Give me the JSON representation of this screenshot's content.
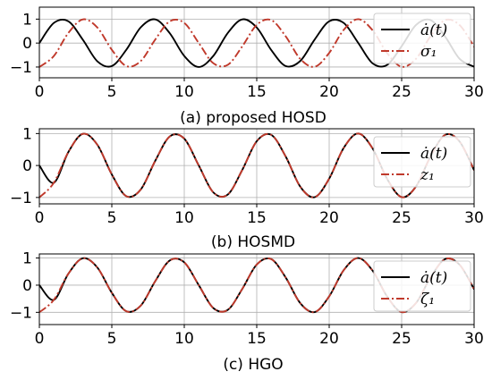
{
  "chart_data": [
    {
      "type": "line",
      "caption": "(a) proposed HOSD",
      "xlim": [
        0,
        30
      ],
      "ylim": [
        -1.45,
        1.5
      ],
      "xticks": [
        0,
        5,
        10,
        15,
        20,
        25,
        30
      ],
      "yticks": [
        -1,
        0,
        1
      ],
      "grid": true,
      "legend_position": "top-right",
      "series": [
        {
          "name": "ȧ(t)",
          "color": "#000000",
          "style": "solid",
          "x": [
            0,
            1,
            2,
            3,
            4,
            5,
            6,
            7,
            8,
            9,
            10,
            11,
            12,
            13,
            14,
            15,
            16,
            17,
            18,
            19,
            20,
            21,
            22,
            23,
            24,
            25,
            26,
            27,
            28,
            29,
            30
          ],
          "y": [
            0,
            0.84,
            0.91,
            0.14,
            -0.76,
            -0.96,
            -0.28,
            0.66,
            0.99,
            0.41,
            -0.54,
            -1.0,
            -0.54,
            0.42,
            0.99,
            0.65,
            -0.29,
            -0.96,
            -0.75,
            0.15,
            0.91,
            0.84,
            0.01,
            -0.85,
            -0.91,
            -0.13,
            0.76,
            0.96,
            0.27,
            -0.66,
            -0.99
          ]
        },
        {
          "name": "σ₁",
          "color": "#c0392b",
          "style": "dashdot",
          "x": [
            0,
            1,
            2,
            3,
            4,
            5,
            6,
            7,
            8,
            9,
            10,
            11,
            12,
            13,
            14,
            15,
            16,
            17,
            18,
            19,
            20,
            21,
            22,
            23,
            24,
            25,
            26,
            27,
            28,
            29,
            30
          ],
          "y": [
            -1.0,
            -0.54,
            0.42,
            0.99,
            0.65,
            -0.28,
            -0.96,
            -0.75,
            0.15,
            0.91,
            0.84,
            0.0,
            -0.84,
            -0.91,
            -0.14,
            0.76,
            0.96,
            0.28,
            -0.66,
            -0.99,
            -0.41,
            0.55,
            1.0,
            0.53,
            -0.42,
            -0.99,
            -0.65,
            0.29,
            0.96,
            0.75,
            -0.15
          ]
        }
      ]
    },
    {
      "type": "line",
      "caption": "(b) HOSMD",
      "xlim": [
        0,
        30
      ],
      "ylim": [
        -1.2,
        1.15
      ],
      "xticks": [
        0,
        5,
        10,
        15,
        20,
        25,
        30
      ],
      "yticks": [
        -1,
        0,
        1
      ],
      "grid": true,
      "legend_position": "top-right",
      "series": [
        {
          "name": "ȧ(t)",
          "color": "#000000",
          "style": "solid",
          "x": [
            0,
            1,
            2,
            3,
            4,
            5,
            6,
            7,
            8,
            9,
            10,
            11,
            12,
            13,
            14,
            15,
            16,
            17,
            18,
            19,
            20,
            21,
            22,
            23,
            24,
            25,
            26,
            27,
            28,
            29,
            30
          ],
          "y": [
            0,
            -0.54,
            0.42,
            0.99,
            0.65,
            -0.28,
            -0.96,
            -0.75,
            0.15,
            0.91,
            0.84,
            0.0,
            -0.84,
            -0.91,
            -0.14,
            0.76,
            0.96,
            0.28,
            -0.66,
            -0.99,
            -0.41,
            0.55,
            1.0,
            0.53,
            -0.42,
            -0.99,
            -0.65,
            0.29,
            0.96,
            0.75,
            -0.15
          ]
        },
        {
          "name": "z₁",
          "color": "#c0392b",
          "style": "dashdot",
          "x": [
            0,
            1,
            2,
            3,
            4,
            5,
            6,
            7,
            8,
            9,
            10,
            11,
            12,
            13,
            14,
            15,
            16,
            17,
            18,
            19,
            20,
            21,
            22,
            23,
            24,
            25,
            26,
            27,
            28,
            29,
            30
          ],
          "y": [
            -1.0,
            -0.54,
            0.42,
            0.99,
            0.65,
            -0.28,
            -0.96,
            -0.75,
            0.15,
            0.91,
            0.84,
            0.0,
            -0.84,
            -0.91,
            -0.14,
            0.76,
            0.96,
            0.28,
            -0.66,
            -0.99,
            -0.41,
            0.55,
            1.0,
            0.53,
            -0.42,
            -0.99,
            -0.65,
            0.29,
            0.96,
            0.75,
            -0.15
          ]
        }
      ]
    },
    {
      "type": "line",
      "caption": "(c) HGO",
      "xlim": [
        0,
        30
      ],
      "ylim": [
        -1.45,
        1.15
      ],
      "xticks": [
        0,
        5,
        10,
        15,
        20,
        25,
        30
      ],
      "yticks": [
        -1,
        0,
        1
      ],
      "grid": true,
      "legend_position": "top-right",
      "series": [
        {
          "name": "ȧ(t)",
          "color": "#000000",
          "style": "solid",
          "x": [
            0,
            1,
            2,
            3,
            4,
            5,
            6,
            7,
            8,
            9,
            10,
            11,
            12,
            13,
            14,
            15,
            16,
            17,
            18,
            19,
            20,
            21,
            22,
            23,
            24,
            25,
            26,
            27,
            28,
            29,
            30
          ],
          "y": [
            0,
            -0.54,
            0.42,
            0.99,
            0.65,
            -0.28,
            -0.96,
            -0.75,
            0.15,
            0.91,
            0.84,
            0.0,
            -0.84,
            -0.91,
            -0.14,
            0.76,
            0.96,
            0.28,
            -0.66,
            -0.99,
            -0.41,
            0.55,
            1.0,
            0.53,
            -0.42,
            -0.99,
            -0.65,
            0.29,
            0.96,
            0.75,
            -0.15
          ]
        },
        {
          "name": "ζ₁",
          "color": "#c0392b",
          "style": "dashdot",
          "x": [
            0,
            1,
            2,
            3,
            4,
            5,
            6,
            7,
            8,
            9,
            10,
            11,
            12,
            13,
            14,
            15,
            16,
            17,
            18,
            19,
            20,
            21,
            22,
            23,
            24,
            25,
            26,
            27,
            28,
            29,
            30
          ],
          "y": [
            -1.0,
            -0.54,
            0.42,
            0.99,
            0.65,
            -0.28,
            -0.96,
            -0.75,
            0.15,
            0.91,
            0.84,
            0.0,
            -0.84,
            -0.91,
            -0.14,
            0.76,
            0.96,
            0.28,
            -0.66,
            -0.99,
            -0.41,
            0.55,
            1.0,
            0.53,
            -0.42,
            -0.99,
            -0.65,
            0.29,
            0.96,
            0.75,
            -0.15
          ]
        }
      ]
    }
  ]
}
